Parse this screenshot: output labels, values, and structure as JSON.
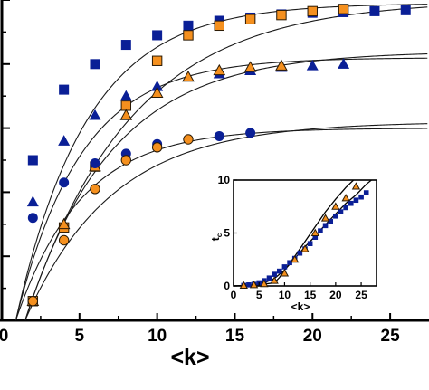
{
  "chart_data": [
    {
      "panel": "main",
      "type": "scatter",
      "xlabel": "<k>",
      "xlim": [
        0,
        27.5
      ],
      "ylim": [
        0,
        1.0
      ],
      "x_ticks": [
        0,
        5,
        10,
        15,
        20,
        25
      ],
      "y_tick_labels_visible": false,
      "grid": false,
      "legend": "none",
      "colors": {
        "blue": "#0a1f96",
        "orange": "#f5901e",
        "curve": "#1a1a1a"
      },
      "series": [
        {
          "marker": "square",
          "color": "blue",
          "x": [
            2,
            4,
            6,
            8,
            10,
            12,
            14,
            16,
            18,
            20,
            22,
            24,
            26
          ],
          "y": [
            0.5,
            0.72,
            0.8,
            0.86,
            0.89,
            0.92,
            0.935,
            0.945,
            0.955,
            0.96,
            0.962,
            0.965,
            0.968
          ]
        },
        {
          "marker": "square",
          "color": "orange",
          "x": [
            2,
            4,
            6,
            8,
            10,
            12,
            14,
            16,
            18,
            20,
            22
          ],
          "y": [
            0.06,
            0.29,
            0.48,
            0.67,
            0.81,
            0.89,
            0.92,
            0.94,
            0.953,
            0.965,
            0.972
          ]
        },
        {
          "marker": "triangle",
          "color": "blue",
          "x": [
            2,
            4,
            6,
            8,
            10,
            12,
            14,
            16,
            18,
            20,
            22
          ],
          "y": [
            0.37,
            0.56,
            0.64,
            0.7,
            0.73,
            0.76,
            0.77,
            0.78,
            0.79,
            0.795,
            0.8
          ]
        },
        {
          "marker": "triangle",
          "color": "orange",
          "x": [
            2,
            4,
            6,
            8,
            10,
            12,
            14,
            16,
            18
          ],
          "y": [
            0.06,
            0.3,
            0.48,
            0.64,
            0.71,
            0.76,
            0.78,
            0.79,
            0.795
          ]
        },
        {
          "marker": "circle",
          "color": "blue",
          "x": [
            2,
            4,
            6,
            8,
            10,
            12,
            14,
            16
          ],
          "y": [
            0.32,
            0.43,
            0.49,
            0.52,
            0.55,
            0.565,
            0.575,
            0.585
          ]
        },
        {
          "marker": "circle",
          "color": "orange",
          "x": [
            2,
            4,
            6,
            8,
            10,
            12
          ],
          "y": [
            0.06,
            0.25,
            0.41,
            0.5,
            0.54,
            0.565
          ]
        }
      ],
      "curves": [
        {
          "asymptote": 0.99,
          "k0": 0.9,
          "tau": 4.6
        },
        {
          "asymptote": 1.0,
          "k0": 1.5,
          "tau": 6.8
        },
        {
          "asymptote": 0.82,
          "k0": 0.9,
          "tau": 4.2
        },
        {
          "asymptote": 0.84,
          "k0": 1.5,
          "tau": 5.6
        },
        {
          "asymptote": 0.6,
          "k0": 0.9,
          "tau": 4.2
        },
        {
          "asymptote": 0.62,
          "k0": 1.5,
          "tau": 5.6
        }
      ]
    },
    {
      "panel": "inset",
      "type": "scatter",
      "xlabel": "<k>",
      "ylabel": "t",
      "ylabel_subscript": "c",
      "xlim": [
        0,
        28
      ],
      "ylim": [
        0,
        10
      ],
      "x_ticks": [
        0,
        5,
        10,
        15,
        20,
        25
      ],
      "y_ticks": [
        0,
        5,
        10
      ],
      "grid": false,
      "legend": "none",
      "series": [
        {
          "marker": "square",
          "color": "blue",
          "x": [
            2,
            3,
            4,
            5,
            6,
            7,
            8,
            9,
            10,
            11,
            12,
            13,
            14,
            15,
            16,
            17,
            18,
            19,
            20,
            21,
            22,
            23,
            24,
            25,
            26
          ],
          "y": [
            0.05,
            0.1,
            0.15,
            0.3,
            0.5,
            0.75,
            1.1,
            1.4,
            1.8,
            2.2,
            2.6,
            3.1,
            3.5,
            4.0,
            4.6,
            5.2,
            5.7,
            6.1,
            6.6,
            7.0,
            7.4,
            7.8,
            8.1,
            8.4,
            8.8
          ]
        },
        {
          "marker": "triangle",
          "color": "orange",
          "x": [
            2,
            4,
            6,
            8,
            10,
            12,
            14,
            16,
            18,
            20,
            22,
            24
          ],
          "y": [
            0.05,
            0.1,
            0.2,
            0.5,
            1.2,
            2.5,
            3.5,
            5.0,
            6.4,
            7.5,
            8.3,
            9.4
          ]
        }
      ],
      "lines": [
        {
          "x": [
            0,
            2,
            4,
            6,
            8,
            10,
            12,
            14,
            16,
            18,
            20,
            22,
            24,
            26,
            27
          ],
          "y": [
            0,
            0.05,
            0.12,
            0.3,
            0.7,
            1.5,
            2.6,
            3.7,
            4.7,
            5.8,
            6.8,
            7.8,
            8.6,
            9.6,
            10.0
          ]
        },
        {
          "x": [
            0,
            4,
            8,
            9,
            10,
            12,
            14,
            16,
            18,
            20,
            22,
            23.5
          ],
          "y": [
            0,
            0.05,
            0.3,
            0.8,
            1.5,
            2.8,
            4.2,
            5.6,
            7.0,
            8.2,
            9.3,
            10.0
          ]
        }
      ]
    }
  ]
}
